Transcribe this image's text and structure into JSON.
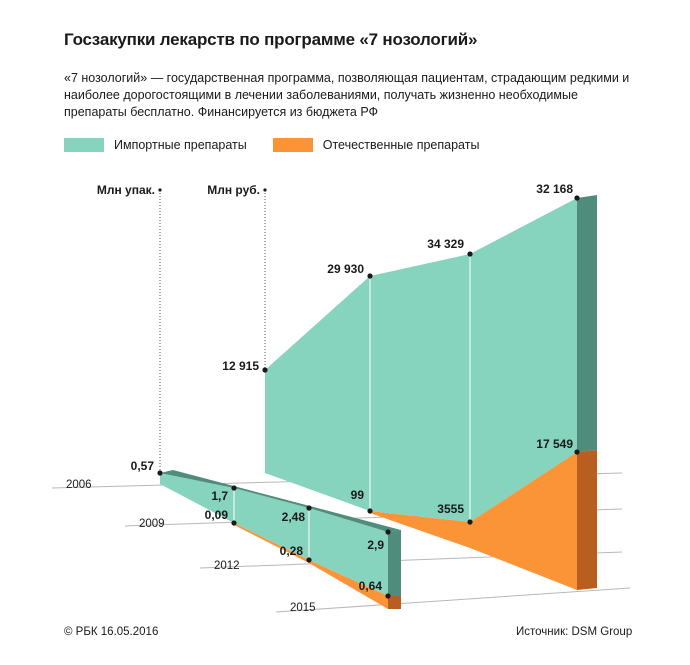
{
  "title": "Госзакупки лекарств по программе «7 нозологий»",
  "subtitle": "«7 нозологий» — государственная программа, позволяющая пациентам, страдающим редкими и наиболее дорогостоящими в лечении заболеваниями, получать жизненно необходимые препараты бесплатно. Финансируется из бюджета РФ",
  "legend": {
    "imported": "Импортные препараты",
    "domestic": "Отечественные препараты"
  },
  "colors": {
    "imported": "#86d3be",
    "imported_dark": "#4f8c7c",
    "domestic": "#fb9337",
    "domestic_dark": "#b85e1e"
  },
  "footer": {
    "copyright": "© РБК 16.05.2016",
    "source_prefix": "Источник:",
    "source_name": "DSM Group"
  },
  "chart_data": {
    "type": "area",
    "x": [
      "2006",
      "2009",
      "2012",
      "2015"
    ],
    "series_sets": [
      {
        "axis_label": "Млн упак.",
        "imported_total": [
          0.57,
          1.7,
          2.48,
          2.9
        ],
        "domestic": [
          null,
          0.09,
          0.28,
          0.64
        ],
        "imported_labels": [
          "0,57",
          "1,7",
          "2,48",
          "2,9"
        ],
        "domestic_labels": [
          "",
          "0,09",
          "0,28",
          "0,64"
        ]
      },
      {
        "axis_label": "Млн руб.",
        "imported_total": [
          12915,
          29930,
          34329,
          32168
        ],
        "domestic": [
          null,
          99,
          3555,
          17549
        ],
        "imported_labels": [
          "12 915",
          "29 930",
          "34 329",
          "32 168"
        ],
        "domestic_labels": [
          "",
          "99",
          "3555",
          "17 549"
        ]
      }
    ]
  }
}
